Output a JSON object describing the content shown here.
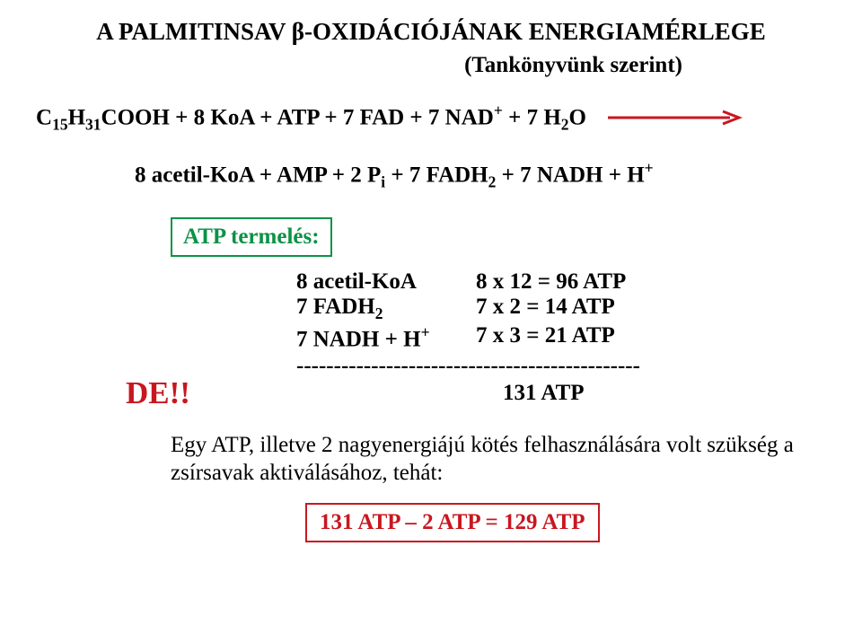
{
  "title_html": "A PALMITINSAV β-OXIDÁCIÓJÁNAK ENERGIAMÉRLEGE",
  "subtitle": "(Tankönyvünk szerint)",
  "eq1_html": "C<sub>15</sub>H<sub>31</sub>COOH + 8 KoA + ATP + 7 FAD + 7 NAD<sup>+</sup> + 7 H<sub>2</sub>O",
  "eq2_html": "8 acetil-KoA + AMP + 2 P<sub>i</sub> + 7 FADH<sub>2</sub> + 7 NADH + H<sup>+</sup>",
  "atp_box_label": "ATP termelés:",
  "atp_box_color": "#0b9246",
  "atp_rows": [
    {
      "left_html": "8 acetil-KoA",
      "right": "8 x 12 = 96 ATP"
    },
    {
      "left_html": "7 FADH<sub>2</sub>",
      "right": "7 x 2  = 14 ATP"
    },
    {
      "left_html": "7 NADH + H<sup>+</sup>",
      "right": "7 x 3  = 21 ATP"
    }
  ],
  "dashes": "----------------------------------------------",
  "de_label": "DE!!",
  "de_color": "#c8171f",
  "total": "131 ATP",
  "sentence_line1": "Egy ATP, illetve 2 nagyenergiájú kötés felhasználására volt szükség a",
  "sentence_line2": "zsírsavak aktiválásához, tehát:",
  "result_text": "131 ATP – 2 ATP = 129 ATP",
  "result_color": "#c8171f",
  "arrow": {
    "color": "#c8171f",
    "width": 150,
    "stroke": 3
  }
}
